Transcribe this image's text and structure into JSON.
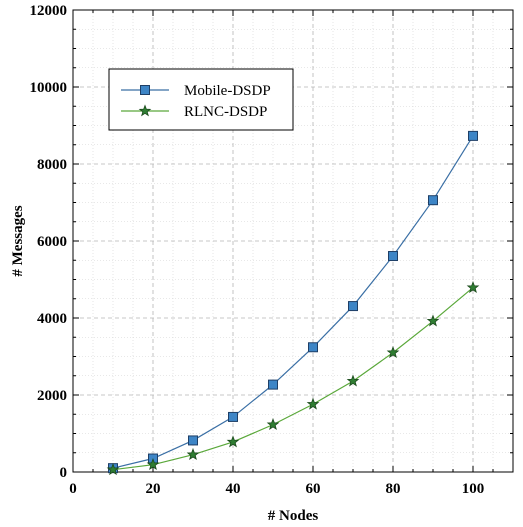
{
  "chart_data": {
    "type": "line",
    "xlabel": "# Nodes",
    "ylabel": "# Messages",
    "xlim": [
      0,
      110
    ],
    "ylim": [
      0,
      12000
    ],
    "xticks": [
      0,
      20,
      40,
      60,
      80,
      100
    ],
    "yticks": [
      0,
      2000,
      4000,
      6000,
      8000,
      10000,
      12000
    ],
    "grid": true,
    "legend_position": "upper-left",
    "x": [
      10,
      20,
      30,
      40,
      50,
      60,
      70,
      80,
      90,
      100
    ],
    "series": [
      {
        "name": "Mobile-DSDP",
        "marker": "square",
        "line_color": "#3a6fa5",
        "marker_color": "#3d85c6",
        "values": [
          100,
          350,
          820,
          1430,
          2270,
          3240,
          4310,
          5610,
          7060,
          8730
        ]
      },
      {
        "name": "RLNC-DSDP",
        "marker": "star",
        "line_color": "#5aa83a",
        "marker_color": "#2f7d32",
        "values": [
          60,
          190,
          450,
          780,
          1230,
          1760,
          2360,
          3100,
          3920,
          4790
        ]
      }
    ]
  }
}
